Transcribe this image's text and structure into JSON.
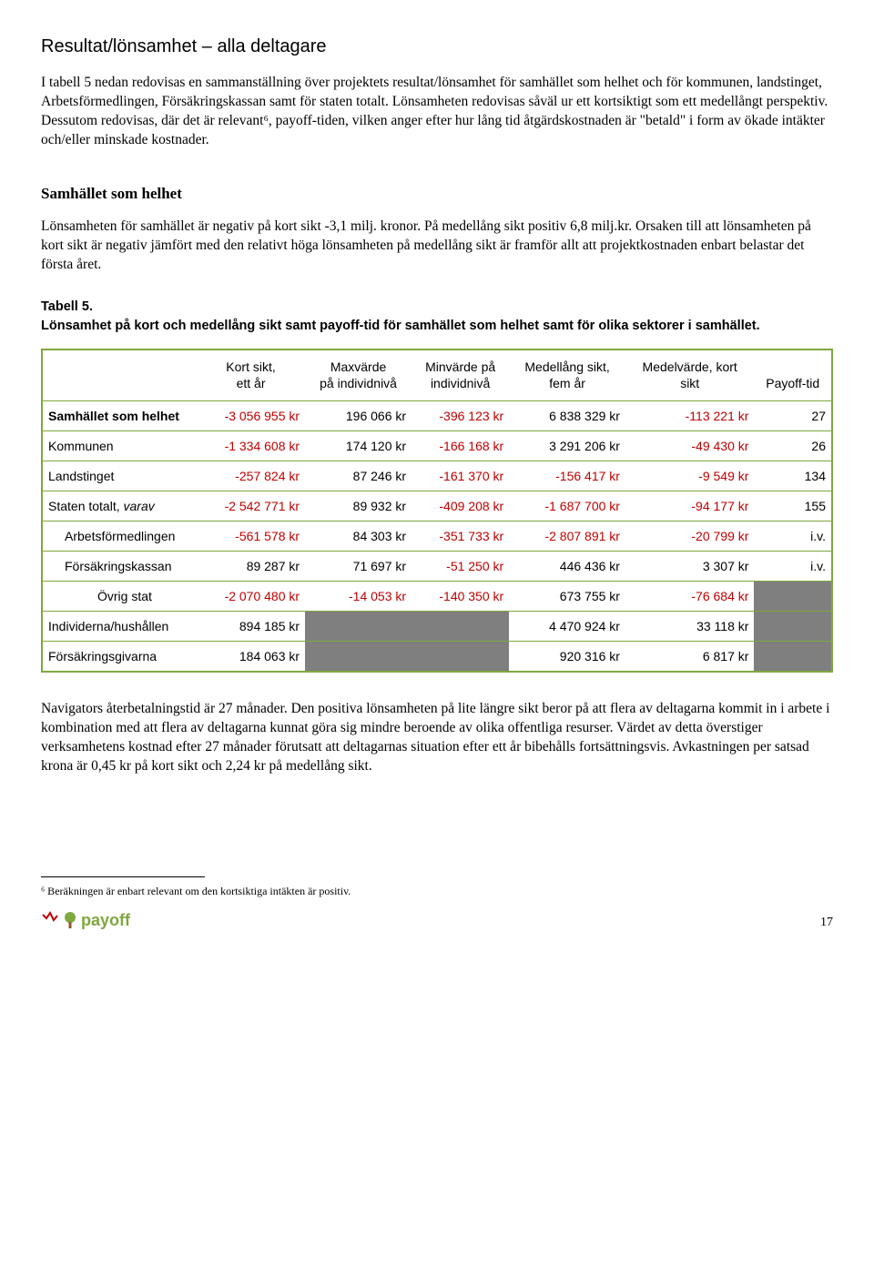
{
  "heading1": "Resultat/lönsamhet – alla deltagare",
  "para1": "I tabell 5 nedan redovisas en sammanställning över projektets resultat/lönsamhet för samhället som helhet och för kommunen, landstinget, Arbetsförmedlingen, Försäkringskassan samt för staten totalt. Lönsamheten redovisas såväl ur ett kortsiktigt som ett medellångt perspektiv. Dessutom redovisas, där det är relevant⁶, payoff-tiden, vilken anger efter hur lång tid åtgärdskostnaden är \"betald\" i form av ökade intäkter och/eller minskade kostnader.",
  "heading2": "Samhället som helhet",
  "para2": "Lönsamheten för samhället är negativ på kort sikt -3,1 milj. kronor. På medellång sikt positiv 6,8 milj.kr. Orsaken till att lönsamheten på kort sikt är negativ jämfört med den relativt höga lönsamheten på medellång sikt är framför allt att projektkostnaden enbart belastar det första året.",
  "tableLabel": "Tabell 5.",
  "tableCaption": "Lönsamhet på kort och medellång sikt samt payoff-tid för samhället som helhet samt för olika sektorer i samhället.",
  "table": {
    "columns": [
      "",
      "Kort sikt,\nett år",
      "Maxvärde\npå individnivå",
      "Minvärde på\nindividnivå",
      "Medellång sikt,\nfem år",
      "Medelvärde, kort\nsikt",
      "Payoff-tid"
    ],
    "border_color": "#7fa83f",
    "neg_color": "#c00000",
    "grey_color": "#7f7f7f",
    "rows": [
      {
        "label": "Samhället som helhet",
        "bold": true,
        "cells": [
          {
            "v": "-3 056 955 kr",
            "neg": true
          },
          {
            "v": "196 066 kr"
          },
          {
            "v": "-396 123 kr",
            "neg": true
          },
          {
            "v": "6 838 329 kr"
          },
          {
            "v": "-113 221 kr",
            "neg": true
          },
          {
            "v": "27"
          }
        ]
      },
      {
        "label": "Kommunen",
        "cells": [
          {
            "v": "-1 334 608 kr",
            "neg": true
          },
          {
            "v": "174 120 kr"
          },
          {
            "v": "-166 168 kr",
            "neg": true
          },
          {
            "v": "3 291 206 kr"
          },
          {
            "v": "-49 430 kr",
            "neg": true
          },
          {
            "v": "26"
          }
        ]
      },
      {
        "label": "Landstinget",
        "cells": [
          {
            "v": "-257 824 kr",
            "neg": true
          },
          {
            "v": "87 246 kr"
          },
          {
            "v": "-161 370 kr",
            "neg": true
          },
          {
            "v": "-156 417 kr",
            "neg": true
          },
          {
            "v": "-9 549 kr",
            "neg": true
          },
          {
            "v": "134"
          }
        ]
      },
      {
        "label": "Staten totalt, varav",
        "italicSuffix": "varav",
        "cells": [
          {
            "v": "-2 542 771 kr",
            "neg": true
          },
          {
            "v": "89 932 kr"
          },
          {
            "v": "-409 208 kr",
            "neg": true
          },
          {
            "v": "-1 687 700 kr",
            "neg": true
          },
          {
            "v": "-94 177 kr",
            "neg": true
          },
          {
            "v": "155"
          }
        ]
      },
      {
        "label": "Arbetsförmedlingen",
        "indent": 1,
        "cells": [
          {
            "v": "-561 578 kr",
            "neg": true
          },
          {
            "v": "84 303 kr"
          },
          {
            "v": "-351 733 kr",
            "neg": true
          },
          {
            "v": "-2 807 891 kr",
            "neg": true
          },
          {
            "v": "-20 799 kr",
            "neg": true
          },
          {
            "v": "i.v."
          }
        ]
      },
      {
        "label": "Försäkringskassan",
        "indent": 1,
        "cells": [
          {
            "v": "89 287 kr"
          },
          {
            "v": "71 697 kr"
          },
          {
            "v": "-51 250 kr",
            "neg": true
          },
          {
            "v": "446 436 kr"
          },
          {
            "v": "3 307 kr"
          },
          {
            "v": "i.v."
          }
        ]
      },
      {
        "label": "Övrig stat",
        "indent": 2,
        "cells": [
          {
            "v": "-2 070 480 kr",
            "neg": true
          },
          {
            "v": "-14 053 kr",
            "neg": true
          },
          {
            "v": "-140 350 kr",
            "neg": true
          },
          {
            "v": "673 755 kr"
          },
          {
            "v": "-76 684 kr",
            "neg": true
          },
          {
            "grey": true
          }
        ]
      },
      {
        "label": "Individerna/hushållen",
        "cells": [
          {
            "v": "894 185 kr"
          },
          {
            "grey": true
          },
          {
            "grey": true
          },
          {
            "v": "4 470 924 kr"
          },
          {
            "v": "33 118 kr"
          },
          {
            "grey": true
          }
        ]
      },
      {
        "label": "Försäkringsgivarna",
        "last": true,
        "cells": [
          {
            "v": "184 063 kr"
          },
          {
            "grey": true
          },
          {
            "grey": true
          },
          {
            "v": "920 316 kr"
          },
          {
            "v": "6 817 kr"
          },
          {
            "grey": true
          }
        ]
      }
    ]
  },
  "para3": "Navigators återbetalningstid är 27 månader. Den positiva lönsamheten på lite längre sikt beror på att flera av deltagarna kommit in i arbete i kombination med att flera av deltagarna kunnat göra sig mindre beroende av olika offentliga resurser. Värdet av detta överstiger verksamhetens kostnad efter 27 månader förutsatt att deltagarnas situation efter ett år bibehålls fortsättningsvis. Avkastningen per satsad krona är 0,45 kr på kort sikt och 2,24 kr på medellång sikt.",
  "footnote": "⁶ Beräkningen är enbart relevant om den kortsiktiga intäkten är positiv.",
  "logo_text": "payoff",
  "page_number": "17",
  "logo_colors": {
    "leaf": "#7fa83f",
    "trunk": "#8b5a2b"
  }
}
